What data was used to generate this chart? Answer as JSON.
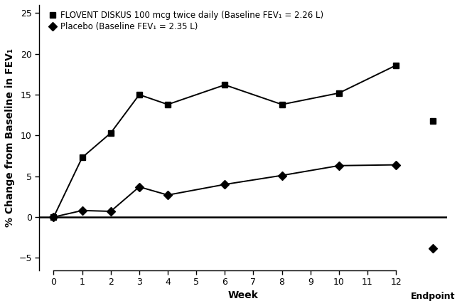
{
  "flovent_weeks": [
    0,
    1,
    2,
    3,
    4,
    6,
    8,
    10,
    12
  ],
  "flovent_values": [
    0,
    7.3,
    10.3,
    15.0,
    13.8,
    16.2,
    13.8,
    15.2,
    18.6
  ],
  "flovent_endpoint_val": 11.8,
  "placebo_weeks": [
    0,
    1,
    2,
    3,
    4,
    6,
    8,
    10,
    12
  ],
  "placebo_values": [
    0,
    0.8,
    0.7,
    3.7,
    2.7,
    4.0,
    5.1,
    6.3,
    6.4
  ],
  "placebo_endpoint_val": -3.8,
  "endpoint_x": 13.3,
  "xlabel": "Week",
  "ylabel": "% Change from Baseline in FEV₁",
  "ylim": [
    -6.5,
    26
  ],
  "yticks": [
    -5,
    0,
    5,
    10,
    15,
    20,
    25
  ],
  "week_tick_positions": [
    0,
    1,
    2,
    3,
    4,
    5,
    6,
    7,
    8,
    9,
    10,
    11,
    12
  ],
  "week_tick_labels": [
    "0",
    "1",
    "2",
    "3",
    "4",
    "5",
    "6",
    "7",
    "8",
    "9",
    "10",
    "11",
    "12"
  ],
  "legend_flovent": "FLOVENT DISKUS 100 mcg twice daily (Baseline FEV₁ = 2.26 L)",
  "legend_placebo": "Placebo (Baseline FEV₁ = 2.35 L)",
  "line_color": "#000000",
  "background_color": "#ffffff",
  "xlim_left": -0.5,
  "xlim_right": 13.8
}
